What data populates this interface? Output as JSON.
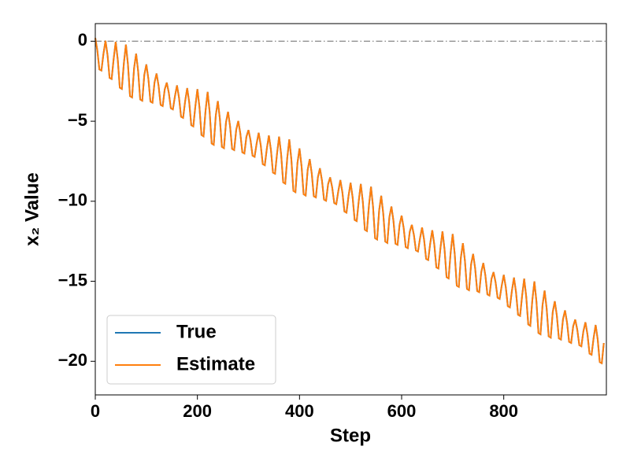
{
  "chart_data": {
    "type": "line",
    "xlabel": "Step",
    "ylabel": "x₂ Value",
    "xlim": [
      0,
      1001
    ],
    "ylim": [
      -22.1,
      1.1
    ],
    "xticks": [
      0,
      200,
      400,
      600,
      800
    ],
    "yticks": [
      {
        "value": 0,
        "label": "0"
      },
      {
        "value": -5,
        "label": "−5"
      },
      {
        "value": -10,
        "label": "−10"
      },
      {
        "value": -15,
        "label": "−15"
      },
      {
        "value": -20,
        "label": "−20"
      }
    ],
    "reference_line": 0,
    "legend": "lower left",
    "x": [
      0,
      4,
      8,
      12,
      16,
      20,
      24,
      28,
      32,
      36,
      40,
      44,
      48,
      52,
      56,
      60,
      64,
      68,
      72,
      76,
      80,
      84,
      88,
      92,
      96,
      100,
      104,
      108,
      112,
      116,
      120,
      124,
      128,
      132,
      136,
      140,
      144,
      148,
      152,
      156,
      160,
      164,
      168,
      172,
      176,
      180,
      184,
      188,
      192,
      196,
      200,
      204,
      208,
      212,
      216,
      220,
      224,
      228,
      232,
      236,
      240,
      244,
      248,
      252,
      256,
      260,
      264,
      268,
      272,
      276,
      280,
      284,
      288,
      292,
      296,
      300,
      304,
      308,
      312,
      316,
      320,
      324,
      328,
      332,
      336,
      340,
      344,
      348,
      352,
      356,
      360,
      364,
      368,
      372,
      376,
      380,
      384,
      388,
      392,
      396,
      400,
      404,
      408,
      412,
      416,
      420,
      424,
      428,
      432,
      436,
      440,
      444,
      448,
      452,
      456,
      460,
      464,
      468,
      472,
      476,
      480,
      484,
      488,
      492,
      496,
      500,
      504,
      508,
      512,
      516,
      520,
      524,
      528,
      532,
      536,
      540,
      544,
      548,
      552,
      556,
      560,
      564,
      568,
      572,
      576,
      580,
      584,
      588,
      592,
      596,
      600,
      604,
      608,
      612,
      616,
      620,
      624,
      628,
      632,
      636,
      640,
      644,
      648,
      652,
      656,
      660,
      664,
      668,
      672,
      676,
      680,
      684,
      688,
      692,
      696,
      700,
      704,
      708,
      712,
      716,
      720,
      724,
      728,
      732,
      736,
      740,
      744,
      748,
      752,
      756,
      760,
      764,
      768,
      772,
      776,
      780,
      784,
      788,
      792,
      796,
      800,
      804,
      808,
      812,
      816,
      820,
      824,
      828,
      832,
      836,
      840,
      844,
      848,
      852,
      856,
      860,
      864,
      868,
      872,
      876,
      880,
      884,
      888,
      892,
      896,
      900,
      904,
      908,
      912,
      916,
      920,
      924,
      928,
      932,
      936,
      940,
      944,
      948,
      952,
      956,
      960,
      964,
      968,
      972,
      976,
      980,
      984,
      988,
      992,
      996
    ],
    "series": [
      {
        "name": "True",
        "color": "#1f77b4",
        "values": [
          0.2,
          -0.57,
          -1.76,
          -1.83,
          -0.79,
          0.03,
          -0.87,
          -2.29,
          -2.36,
          -1.1,
          -0.04,
          -1.15,
          -2.9,
          -2.98,
          -1.37,
          -0.21,
          -1.46,
          -3.43,
          -3.51,
          -1.68,
          -0.78,
          -1.89,
          -3.64,
          -3.72,
          -2.11,
          -1.45,
          -2.35,
          -3.77,
          -3.84,
          -2.58,
          -2.02,
          -2.79,
          -3.98,
          -4.05,
          -3.01,
          -2.59,
          -3.22,
          -4.19,
          -4.26,
          -3.44,
          -2.76,
          -3.53,
          -4.72,
          -4.79,
          -3.75,
          -2.93,
          -3.83,
          -5.25,
          -5.32,
          -4.06,
          -3.0,
          -4.11,
          -5.86,
          -5.94,
          -4.33,
          -3.17,
          -4.42,
          -6.39,
          -6.47,
          -4.64,
          -3.74,
          -4.85,
          -6.6,
          -6.68,
          -5.07,
          -4.41,
          -5.31,
          -6.73,
          -6.8,
          -5.54,
          -4.98,
          -5.75,
          -6.94,
          -7.01,
          -5.97,
          -5.55,
          -6.18,
          -7.15,
          -7.22,
          -6.4,
          -5.72,
          -6.49,
          -7.68,
          -7.75,
          -6.71,
          -5.89,
          -6.79,
          -8.21,
          -8.28,
          -7.02,
          -5.96,
          -7.07,
          -8.82,
          -8.9,
          -7.29,
          -6.13,
          -7.38,
          -9.35,
          -9.43,
          -7.6,
          -6.7,
          -7.81,
          -9.56,
          -9.64,
          -8.03,
          -7.37,
          -8.27,
          -9.69,
          -9.76,
          -8.5,
          -7.94,
          -8.71,
          -9.9,
          -9.97,
          -8.93,
          -8.51,
          -9.14,
          -10.11,
          -10.18,
          -9.36,
          -8.68,
          -9.45,
          -10.64,
          -10.71,
          -9.67,
          -8.85,
          -9.75,
          -11.17,
          -11.24,
          -9.98,
          -8.92,
          -10.03,
          -11.78,
          -11.86,
          -10.25,
          -9.09,
          -10.34,
          -12.31,
          -12.39,
          -10.56,
          -9.66,
          -10.77,
          -12.52,
          -12.6,
          -10.99,
          -10.33,
          -11.23,
          -12.65,
          -12.72,
          -11.46,
          -10.9,
          -11.67,
          -12.86,
          -12.93,
          -11.89,
          -11.47,
          -12.1,
          -13.07,
          -13.14,
          -12.32,
          -11.64,
          -12.41,
          -13.6,
          -13.67,
          -12.63,
          -11.81,
          -12.71,
          -14.13,
          -14.2,
          -12.94,
          -11.88,
          -12.99,
          -14.74,
          -14.82,
          -13.21,
          -12.05,
          -13.3,
          -15.27,
          -15.35,
          -13.52,
          -12.62,
          -13.73,
          -15.48,
          -15.56,
          -13.95,
          -13.29,
          -14.19,
          -15.61,
          -15.68,
          -14.42,
          -13.86,
          -14.63,
          -15.82,
          -15.89,
          -14.85,
          -14.43,
          -15.06,
          -16.03,
          -16.1,
          -15.28,
          -14.6,
          -15.37,
          -16.56,
          -16.63,
          -15.59,
          -14.77,
          -15.67,
          -17.09,
          -17.16,
          -15.9,
          -14.84,
          -15.95,
          -17.7,
          -17.78,
          -16.17,
          -15.01,
          -16.26,
          -18.23,
          -18.31,
          -16.48,
          -15.58,
          -16.69,
          -18.44,
          -18.52,
          -16.91,
          -16.25,
          -17.15,
          -18.57,
          -18.64,
          -17.38,
          -16.82,
          -17.59,
          -18.78,
          -18.85,
          -17.81,
          -17.39,
          -18.02,
          -18.99,
          -19.06,
          -18.12,
          -17.56,
          -18.33,
          -19.52,
          -19.59,
          -18.55,
          -17.73,
          -18.63,
          -20.05,
          -20.12,
          -18.86
        ]
      },
      {
        "name": "Estimate",
        "color": "#ff7f0e",
        "values": [
          0.2,
          -0.57,
          -1.76,
          -1.83,
          -0.79,
          0.03,
          -0.87,
          -2.29,
          -2.36,
          -1.1,
          -0.04,
          -1.15,
          -2.9,
          -2.98,
          -1.37,
          -0.21,
          -1.46,
          -3.43,
          -3.51,
          -1.68,
          -0.78,
          -1.89,
          -3.64,
          -3.72,
          -2.11,
          -1.45,
          -2.35,
          -3.77,
          -3.84,
          -2.58,
          -2.02,
          -2.79,
          -3.98,
          -4.05,
          -3.01,
          -2.59,
          -3.22,
          -4.19,
          -4.26,
          -3.44,
          -2.76,
          -3.53,
          -4.72,
          -4.79,
          -3.75,
          -2.93,
          -3.83,
          -5.25,
          -5.32,
          -4.06,
          -3.0,
          -4.11,
          -5.86,
          -5.94,
          -4.33,
          -3.17,
          -4.42,
          -6.39,
          -6.47,
          -4.64,
          -3.74,
          -4.85,
          -6.6,
          -6.68,
          -5.07,
          -4.41,
          -5.31,
          -6.73,
          -6.8,
          -5.54,
          -4.98,
          -5.75,
          -6.94,
          -7.01,
          -5.97,
          -5.55,
          -6.18,
          -7.15,
          -7.22,
          -6.4,
          -5.72,
          -6.49,
          -7.68,
          -7.75,
          -6.71,
          -5.89,
          -6.79,
          -8.21,
          -8.28,
          -7.02,
          -5.96,
          -7.07,
          -8.82,
          -8.9,
          -7.29,
          -6.13,
          -7.38,
          -9.35,
          -9.43,
          -7.6,
          -6.7,
          -7.81,
          -9.56,
          -9.64,
          -8.03,
          -7.37,
          -8.27,
          -9.69,
          -9.76,
          -8.5,
          -7.94,
          -8.71,
          -9.9,
          -9.97,
          -8.93,
          -8.51,
          -9.14,
          -10.11,
          -10.18,
          -9.36,
          -8.68,
          -9.45,
          -10.64,
          -10.71,
          -9.67,
          -8.85,
          -9.75,
          -11.17,
          -11.24,
          -9.98,
          -8.92,
          -10.03,
          -11.78,
          -11.86,
          -10.25,
          -9.09,
          -10.34,
          -12.31,
          -12.39,
          -10.56,
          -9.66,
          -10.77,
          -12.52,
          -12.6,
          -10.99,
          -10.33,
          -11.23,
          -12.65,
          -12.72,
          -11.46,
          -10.9,
          -11.67,
          -12.86,
          -12.93,
          -11.89,
          -11.47,
          -12.1,
          -13.07,
          -13.14,
          -12.32,
          -11.64,
          -12.41,
          -13.6,
          -13.67,
          -12.63,
          -11.81,
          -12.71,
          -14.13,
          -14.2,
          -12.94,
          -11.88,
          -12.99,
          -14.74,
          -14.82,
          -13.21,
          -12.05,
          -13.3,
          -15.27,
          -15.35,
          -13.52,
          -12.62,
          -13.73,
          -15.48,
          -15.56,
          -13.95,
          -13.29,
          -14.19,
          -15.61,
          -15.68,
          -14.42,
          -13.86,
          -14.63,
          -15.82,
          -15.89,
          -14.85,
          -14.43,
          -15.06,
          -16.03,
          -16.1,
          -15.28,
          -14.6,
          -15.37,
          -16.56,
          -16.63,
          -15.59,
          -14.77,
          -15.67,
          -17.09,
          -17.16,
          -15.9,
          -14.84,
          -15.95,
          -17.7,
          -17.78,
          -16.17,
          -15.01,
          -16.26,
          -18.23,
          -18.31,
          -16.48,
          -15.58,
          -16.69,
          -18.44,
          -18.52,
          -16.91,
          -16.25,
          -17.15,
          -18.57,
          -18.64,
          -17.38,
          -16.82,
          -17.59,
          -18.78,
          -18.85,
          -17.81,
          -17.39,
          -18.02,
          -18.99,
          -19.06,
          -18.12,
          -17.56,
          -18.33,
          -19.52,
          -19.59,
          -18.55,
          -17.73,
          -18.63,
          -20.05,
          -20.12,
          -18.86
        ]
      }
    ]
  }
}
